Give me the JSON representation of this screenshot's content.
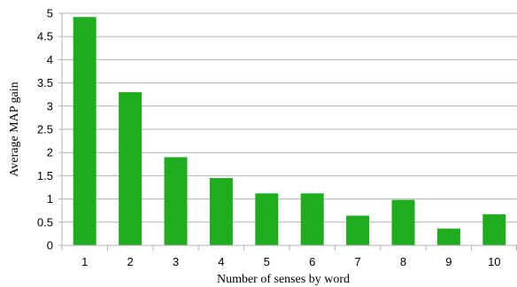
{
  "chart_data": {
    "type": "bar",
    "xlabel": "Number of senses by word",
    "ylabel": "Average MAP gain",
    "categories": [
      "1",
      "2",
      "3",
      "4",
      "5",
      "6",
      "7",
      "8",
      "9",
      "10"
    ],
    "values": [
      4.92,
      3.3,
      1.9,
      1.45,
      1.12,
      1.12,
      0.64,
      0.98,
      0.36,
      0.67
    ],
    "ylim": [
      0,
      5
    ],
    "yticks": [
      "0",
      "0.5",
      "1",
      "1.5",
      "2",
      "2.5",
      "3",
      "3.5",
      "4",
      "4.5",
      "5"
    ],
    "grid": true,
    "legend": "none",
    "bar_color": "#1fad1f",
    "grid_color": "#b3b3b3"
  }
}
